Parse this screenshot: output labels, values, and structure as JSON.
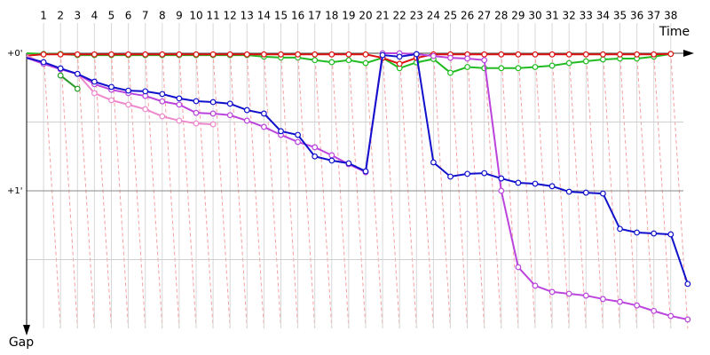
{
  "chart_data": {
    "type": "line",
    "x_label": "Time",
    "y_label": "Gap",
    "categories": [
      null,
      "1",
      "2",
      "3",
      "4",
      "5",
      "6",
      "7",
      "8",
      "9",
      "10",
      "11",
      "12",
      "13",
      "14",
      "15",
      "16",
      "17",
      "18",
      "19",
      "20",
      "21",
      "22",
      "23",
      "24",
      "25",
      "26",
      "27",
      "28",
      "29",
      "30",
      "31",
      "32",
      "33",
      "34",
      "35",
      "36",
      "37",
      "38",
      null
    ],
    "ylim": [
      0,
      120
    ],
    "yticks": [
      {
        "value": 0,
        "label": "+0'"
      },
      {
        "value": 60,
        "label": "+1'"
      }
    ],
    "minor_yticks": [
      30,
      90
    ],
    "grid": true,
    "series": [
      {
        "color": "#22bb22",
        "values": [
          0,
          0.3,
          0.3,
          0.8,
          0.8,
          0.8,
          0.8,
          0.8,
          0.8,
          0.8,
          0.8,
          0.8,
          0.8,
          0.8,
          1.5,
          1.9,
          1.9,
          3,
          3.9,
          3,
          4.3,
          2,
          6.5,
          4,
          2.5,
          8.5,
          6,
          6.5,
          6.5,
          6.5,
          6,
          5.4,
          4.3,
          3.5,
          2.7,
          2.3,
          2.3,
          1.5,
          0.3,
          null
        ]
      },
      {
        "color": "#dd1111",
        "values": [
          1,
          0.5,
          0.5,
          0.5,
          0.5,
          0.5,
          0.5,
          0.5,
          0.5,
          0.5,
          0.5,
          0.5,
          0.5,
          0.5,
          0.5,
          0.5,
          0.5,
          0.5,
          0.5,
          0.5,
          0.5,
          2,
          4.6,
          2,
          0.5,
          0.5,
          0.5,
          0.5,
          0.5,
          0.5,
          0.5,
          0.5,
          0.5,
          0.5,
          0.5,
          0.5,
          0.5,
          0.5,
          0.3,
          null
        ]
      },
      {
        "color": "#2a9a2a",
        "values": [
          3,
          null,
          9.7,
          15.5,
          null,
          null,
          null,
          null,
          null,
          null,
          null,
          null,
          null,
          null,
          null,
          null,
          null,
          null,
          null,
          null,
          null,
          null,
          null,
          null,
          null,
          null,
          null,
          null,
          null,
          null,
          null,
          null,
          null,
          null,
          null,
          null,
          null,
          null,
          null,
          null
        ]
      },
      {
        "color": "#ee88cc",
        "values": [
          1,
          4.6,
          6.6,
          9,
          17.4,
          20.5,
          22.4,
          24.4,
          27.5,
          29.4,
          30.6,
          31,
          null,
          null,
          null,
          null,
          null,
          null,
          null,
          null,
          null,
          null,
          null,
          null,
          null,
          null,
          null,
          null,
          null,
          null,
          null,
          null,
          null,
          null,
          null,
          null,
          null,
          null,
          null,
          null
        ]
      },
      {
        "color": "#bb44dd",
        "values": [
          2,
          4.6,
          7,
          9,
          13.5,
          15.9,
          17.4,
          18.6,
          21,
          22.4,
          26,
          26.3,
          27,
          29.4,
          32.1,
          35.6,
          38.7,
          41,
          44.5,
          48.4,
          51.9,
          0,
          0,
          0.4,
          1.2,
          2,
          2.3,
          3,
          60,
          93.3,
          101.4,
          104.1,
          104.9,
          105.7,
          107.2,
          108.4,
          110,
          112.4,
          114.6,
          116.1
        ]
      },
      {
        "color": "#1111cc",
        "values": [
          2,
          3.9,
          6.6,
          9,
          12.4,
          14.7,
          16.3,
          16.6,
          17.8,
          19.7,
          20.9,
          21.3,
          22,
          24.8,
          26.3,
          34,
          35.6,
          45,
          46.8,
          48,
          51.5,
          0.8,
          1.5,
          0.4,
          47.6,
          53.8,
          52.6,
          52.3,
          54.6,
          56.5,
          56.9,
          58,
          60.4,
          60.8,
          61.2,
          76.6,
          78.2,
          78.6,
          79,
          100.6
        ]
      }
    ]
  }
}
